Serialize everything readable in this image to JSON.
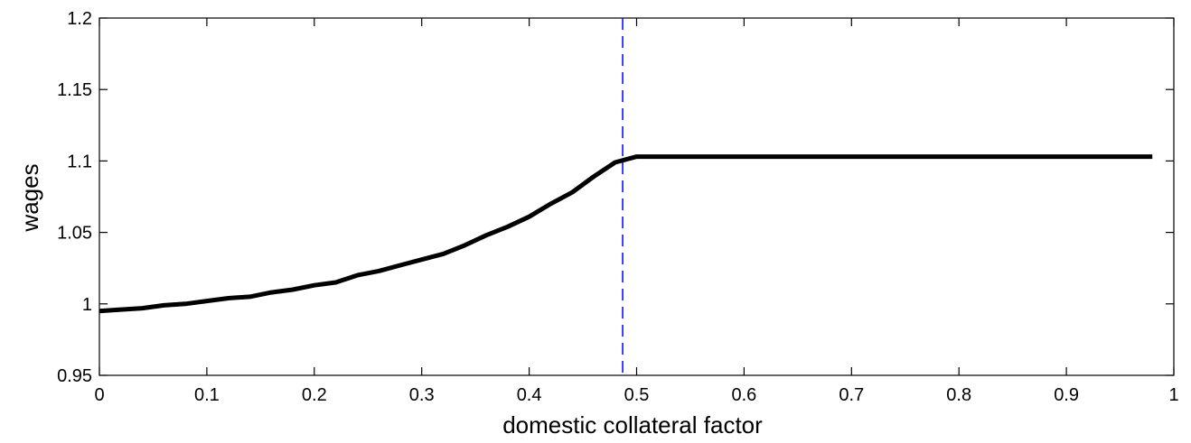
{
  "chart_data": {
    "type": "line",
    "xlabel": "domestic collateral factor",
    "ylabel": "wages",
    "xlim": [
      0,
      1
    ],
    "ylim": [
      0.95,
      1.2
    ],
    "xticks": [
      0,
      0.1,
      0.2,
      0.3,
      0.4,
      0.5,
      0.6,
      0.7,
      0.8,
      0.9,
      1
    ],
    "xtick_labels": [
      "0",
      "0.1",
      "0.2",
      "0.3",
      "0.4",
      "0.5",
      "0.6",
      "0.7",
      "0.8",
      "0.9",
      "1"
    ],
    "yticks": [
      0.95,
      1,
      1.05,
      1.1,
      1.15,
      1.2
    ],
    "ytick_labels": [
      "0.95",
      "1",
      "1.05",
      "1.1",
      "1.15",
      "1.2"
    ],
    "grid": false,
    "series": [
      {
        "color": "#000000",
        "style": "solid",
        "x": [
          0,
          0.02,
          0.04,
          0.06,
          0.08,
          0.1,
          0.12,
          0.14,
          0.16,
          0.18,
          0.2,
          0.22,
          0.24,
          0.26,
          0.28,
          0.3,
          0.32,
          0.34,
          0.36,
          0.38,
          0.4,
          0.42,
          0.44,
          0.46,
          0.48,
          0.5,
          0.98
        ],
        "y": [
          0.995,
          0.996,
          0.997,
          0.999,
          1.0,
          1.002,
          1.004,
          1.005,
          1.008,
          1.01,
          1.013,
          1.015,
          1.02,
          1.023,
          1.027,
          1.031,
          1.035,
          1.041,
          1.048,
          1.054,
          1.061,
          1.07,
          1.078,
          1.089,
          1.099,
          1.103,
          1.103
        ]
      }
    ],
    "vertical_lines": [
      {
        "x": 0.487,
        "color": "#0000ff",
        "style": "dashed"
      }
    ]
  }
}
